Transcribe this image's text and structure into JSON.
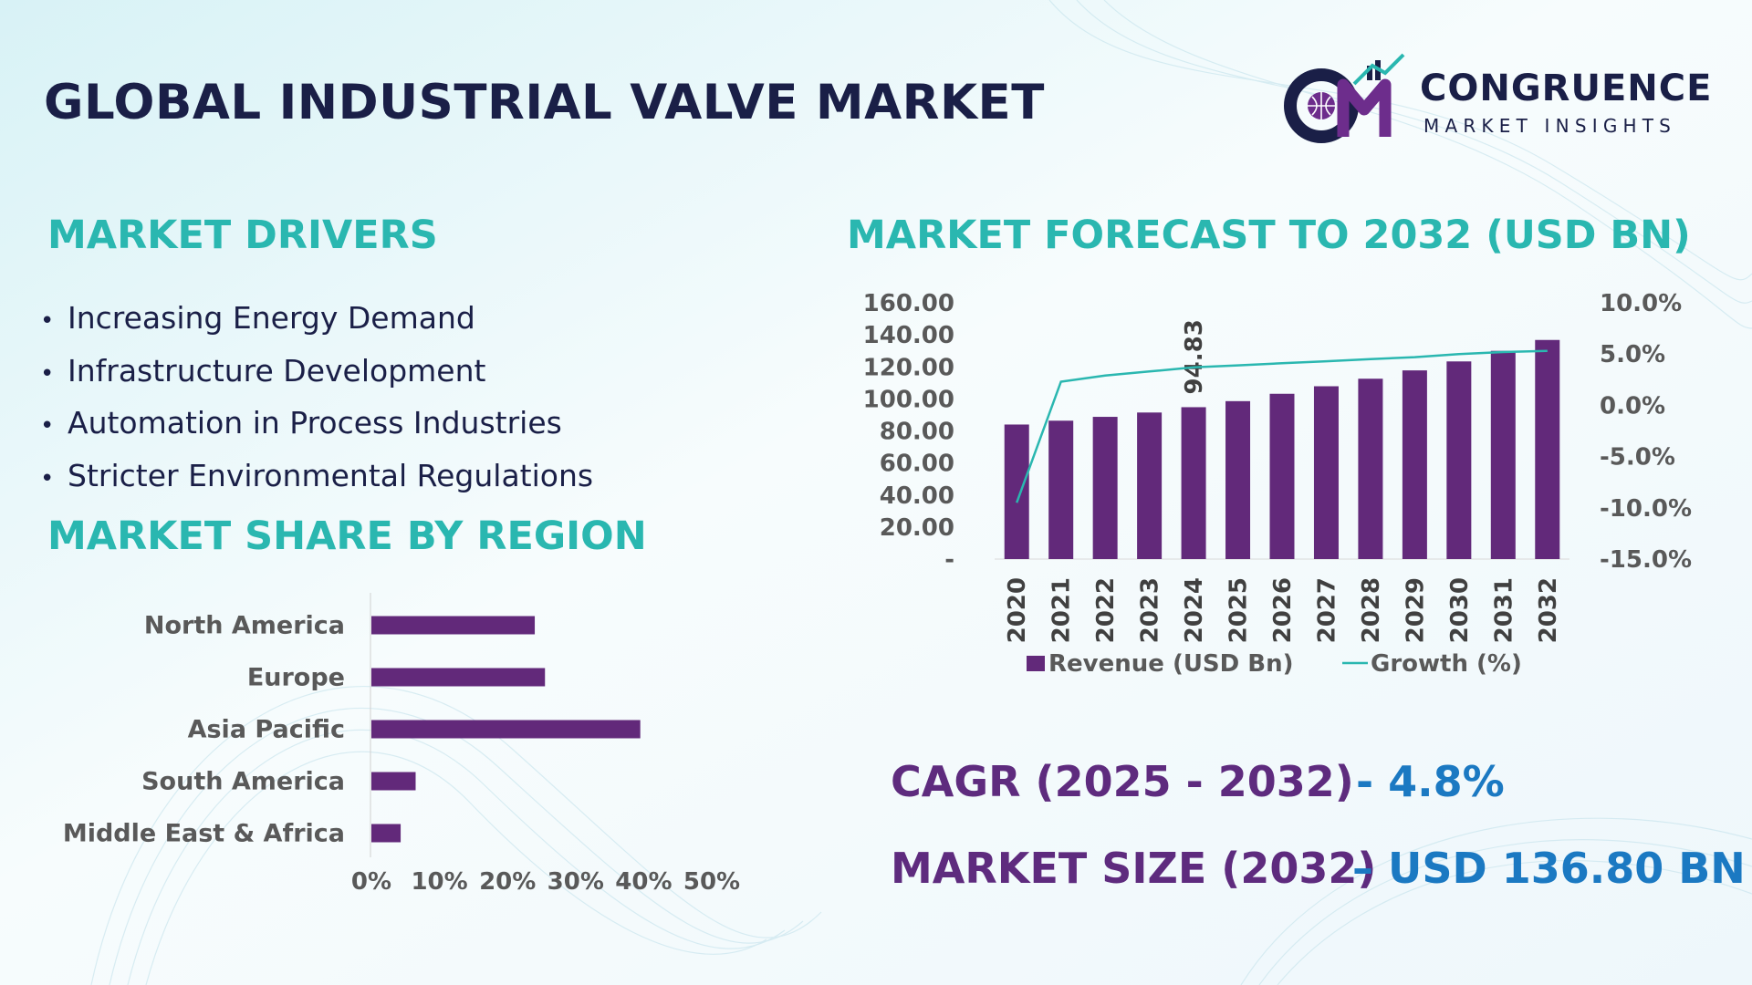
{
  "title": "GLOBAL INDUSTRIAL VALVE MARKET",
  "brand": {
    "name": "CONGRUENCE",
    "tagline": "MARKET INSIGHTS",
    "color": "#1a1f47",
    "accent": "#6d2d8c"
  },
  "drivers": {
    "heading": "MARKET DRIVERS",
    "items": [
      "Increasing Energy Demand",
      "Infrastructure Development",
      "Automation in Process Industries",
      "Stricter Environmental Regulations"
    ]
  },
  "region": {
    "heading": "MARKET SHARE BY REGION"
  },
  "forecast": {
    "heading": "MARKET FORECAST TO 2032 (USD BN)"
  },
  "stats": {
    "cagr_label": "CAGR (2025 - 2032)",
    "cagr_value": "- 4.8%",
    "size_label": "MARKET SIZE (2032)",
    "size_value": "– USD 136.80 BN"
  },
  "colors": {
    "heading": "#2ab7b0",
    "bar": "#62297a",
    "line": "#2ab7b0",
    "stat_label": "#5e2b7e",
    "stat_value": "#1b79c2",
    "title": "#1a1f47"
  },
  "chart_data": [
    {
      "type": "bar",
      "orientation": "horizontal",
      "title": "MARKET SHARE BY REGION",
      "categories": [
        "North America",
        "Europe",
        "Asia Pacific",
        "South America",
        "Middle East & Africa"
      ],
      "values": [
        24,
        25.5,
        39.5,
        6.5,
        4.3
      ],
      "xlim": [
        0,
        50
      ],
      "xticks": [
        "0%",
        "10%",
        "20%",
        "30%",
        "40%",
        "50%"
      ]
    },
    {
      "type": "bar",
      "title": "MARKET FORECAST TO 2032 (USD BN)",
      "categories": [
        "2020",
        "2021",
        "2022",
        "2023",
        "2024",
        "2025",
        "2026",
        "2027",
        "2028",
        "2029",
        "2030",
        "2031",
        "2032"
      ],
      "series": [
        {
          "name": "Revenue (USD Bn)",
          "type": "bar",
          "axis": "left",
          "values": [
            84.0,
            86.4,
            88.8,
            91.5,
            94.83,
            98.6,
            103.2,
            107.9,
            112.6,
            117.8,
            123.4,
            130.0,
            136.8
          ]
        },
        {
          "name": "Growth (%)",
          "type": "line",
          "axis": "right",
          "values": [
            -9.5,
            2.3,
            2.9,
            3.3,
            3.7,
            3.9,
            4.1,
            4.3,
            4.5,
            4.7,
            5.0,
            5.2,
            5.3
          ]
        }
      ],
      "data_labels": [
        {
          "category": "2024",
          "text": "94.83"
        }
      ],
      "ylim_left": [
        0,
        160
      ],
      "yticks_left": [
        "-",
        "20.00",
        "40.00",
        "60.00",
        "80.00",
        "100.00",
        "120.00",
        "140.00",
        "160.00"
      ],
      "ylim_right": [
        -15,
        10
      ],
      "yticks_right": [
        "-15.0%",
        "-10.0%",
        "-5.0%",
        "0.0%",
        "5.0%",
        "10.0%"
      ],
      "legend": "bottom"
    }
  ]
}
